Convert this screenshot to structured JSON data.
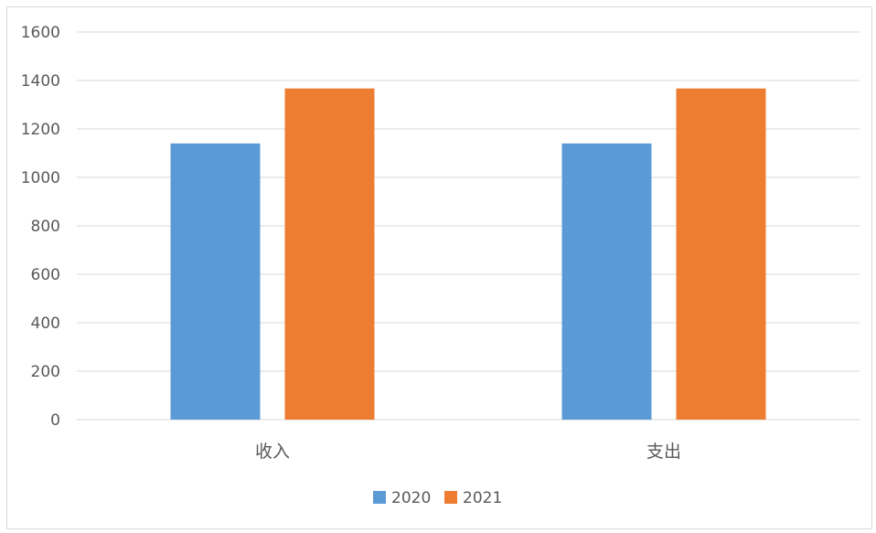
{
  "chart_data": {
    "type": "bar",
    "categories": [
      "收入",
      "支出"
    ],
    "series": [
      {
        "name": "2020",
        "values": [
          1140,
          1140
        ],
        "color": "#5b9bd5"
      },
      {
        "name": "2021",
        "values": [
          1367,
          1367
        ],
        "color": "#ed7d31"
      }
    ],
    "title": "",
    "xlabel": "",
    "ylabel": "",
    "ylim": [
      0,
      1600
    ],
    "yticks": [
      "0",
      "200",
      "400",
      "600",
      "800",
      "1000",
      "1200",
      "1400",
      "1600"
    ],
    "grid": true,
    "legend_position": "bottom"
  }
}
